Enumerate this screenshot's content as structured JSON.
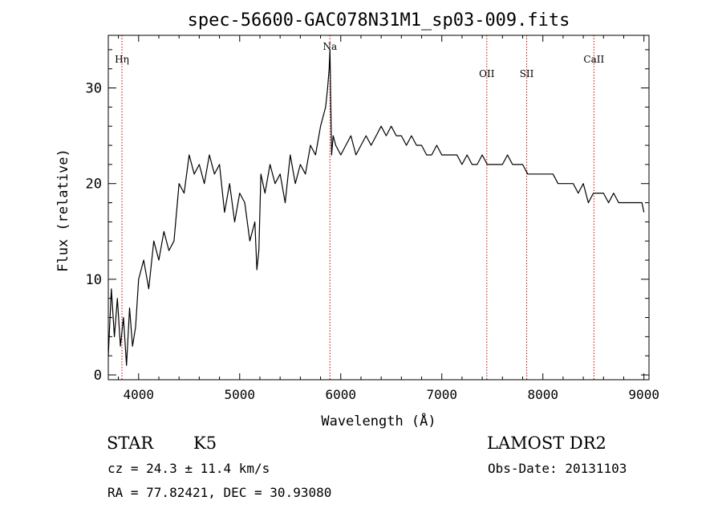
{
  "chart_data": {
    "type": "line",
    "title": "spec-56600-GAC078N31M1_sp03-009.fits",
    "xlabel": "Wavelength (Å)",
    "ylabel": "Flux (relative)",
    "xlim": [
      3700,
      9050
    ],
    "ylim": [
      -0.5,
      35.5
    ],
    "x_ticks": [
      4000,
      5000,
      6000,
      7000,
      8000,
      9000
    ],
    "y_ticks": [
      0,
      10,
      20,
      30
    ],
    "grid": false,
    "line_color": "#000000",
    "marker_color": "#cc0000",
    "lines": [
      {
        "label": "Hη",
        "x": 3835
      },
      {
        "label": "Na",
        "x": 5893
      },
      {
        "label": "OII",
        "x": 7445
      },
      {
        "label": "SII",
        "x": 7840
      },
      {
        "label": "CaII",
        "x": 8505
      }
    ],
    "series": [
      {
        "x": [
          3700,
          3730,
          3760,
          3790,
          3820,
          3850,
          3880,
          3910,
          3940,
          3970,
          4000,
          4050,
          4100,
          4150,
          4200,
          4250,
          4300,
          4350,
          4400,
          4450,
          4500,
          4550,
          4600,
          4650,
          4700,
          4750,
          4800,
          4850,
          4900,
          4950,
          5000,
          5050,
          5100,
          5150,
          5170,
          5190,
          5210,
          5250,
          5300,
          5350,
          5400,
          5450,
          5500,
          5550,
          5600,
          5650,
          5700,
          5750,
          5800,
          5850,
          5870,
          5885,
          5893,
          5900,
          5910,
          5925,
          5950,
          6000,
          6050,
          6100,
          6150,
          6200,
          6250,
          6300,
          6350,
          6400,
          6450,
          6500,
          6550,
          6600,
          6650,
          6700,
          6750,
          6800,
          6850,
          6900,
          6950,
          7000,
          7050,
          7100,
          7150,
          7200,
          7250,
          7300,
          7350,
          7400,
          7450,
          7500,
          7550,
          7600,
          7650,
          7700,
          7750,
          7800,
          7850,
          7900,
          7950,
          8000,
          8050,
          8100,
          8150,
          8200,
          8250,
          8300,
          8350,
          8400,
          8450,
          8500,
          8550,
          8600,
          8650,
          8700,
          8750,
          8800,
          8850,
          8900,
          8950,
          8980,
          9000
        ],
        "y": [
          2,
          9,
          4,
          8,
          3,
          6,
          1,
          7,
          3,
          5,
          10,
          12,
          9,
          14,
          12,
          15,
          13,
          14,
          20,
          19,
          23,
          21,
          22,
          20,
          23,
          21,
          22,
          17,
          20,
          16,
          19,
          18,
          14,
          16,
          11,
          13,
          21,
          19,
          22,
          20,
          21,
          18,
          23,
          20,
          22,
          21,
          24,
          23,
          26,
          28,
          30,
          32,
          34,
          29,
          23,
          25,
          24,
          23,
          24,
          25,
          23,
          24,
          25,
          24,
          25,
          26,
          25,
          26,
          25,
          25,
          24,
          25,
          24,
          24,
          23,
          23,
          24,
          23,
          23,
          23,
          23,
          22,
          23,
          22,
          22,
          23,
          22,
          22,
          22,
          22,
          23,
          22,
          22,
          22,
          21,
          21,
          21,
          21,
          21,
          21,
          20,
          20,
          20,
          20,
          19,
          20,
          18,
          19,
          19,
          19,
          18,
          19,
          18,
          18,
          18,
          18,
          18,
          18,
          17
        ]
      }
    ]
  },
  "info": {
    "class": "STAR",
    "subclass": "K5",
    "survey": "LAMOST DR2",
    "cz": "cz = 24.3 ± 11.4 km/s",
    "obs_date": "Obs-Date: 20131103",
    "radec": "RA =  77.82421, DEC =  30.93080"
  }
}
